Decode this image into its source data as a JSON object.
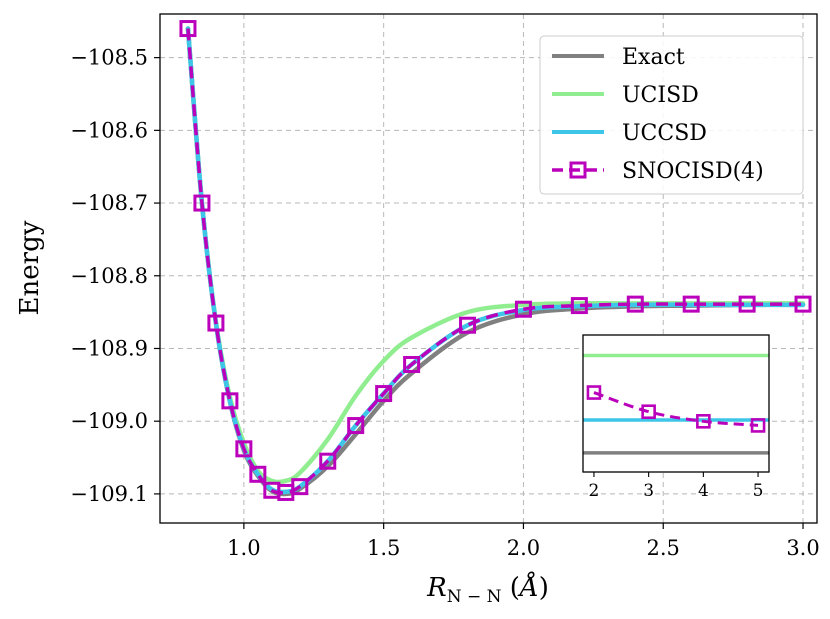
{
  "chart_data": {
    "type": "line",
    "title": "",
    "xlabel": "R_{N-N} (Å)",
    "xlabel_main": "R",
    "xlabel_sub": "N − N",
    "xlabel_unit_open": " (",
    "xlabel_unit": "Å",
    "xlabel_unit_close": ")",
    "ylabel": "Energy",
    "xlim": [
      0.7,
      3.05
    ],
    "ylim": [
      -109.14,
      -108.44
    ],
    "xticks": [
      1.0,
      1.5,
      2.0,
      2.5,
      3.0
    ],
    "xtick_labels": [
      "1.0",
      "1.5",
      "2.0",
      "2.5",
      "3.0"
    ],
    "yticks": [
      -108.5,
      -108.6,
      -108.7,
      -108.8,
      -108.9,
      -109.0,
      -109.1
    ],
    "ytick_labels": [
      "−108.5",
      "−108.6",
      "−108.7",
      "−108.8",
      "−108.9",
      "−109.0",
      "−109.1"
    ],
    "grid": true,
    "legend_position": "top-right",
    "series": [
      {
        "name": "Exact",
        "color": "#808080",
        "style": "solid",
        "x": [
          0.8,
          0.85,
          0.9,
          0.95,
          1.0,
          1.05,
          1.1,
          1.15,
          1.2,
          1.3,
          1.4,
          1.5,
          1.6,
          1.8,
          2.0,
          2.2,
          2.4,
          2.6,
          2.8,
          3.0
        ],
        "y": [
          -108.46,
          -108.7,
          -108.865,
          -108.973,
          -109.04,
          -109.075,
          -109.096,
          -109.1,
          -109.093,
          -109.062,
          -109.018,
          -108.972,
          -108.934,
          -108.878,
          -108.853,
          -108.845,
          -108.842,
          -108.841,
          -108.84,
          -108.84
        ]
      },
      {
        "name": "UCISD",
        "color": "#90ee90",
        "style": "solid",
        "x": [
          0.8,
          0.85,
          0.9,
          0.95,
          1.0,
          1.05,
          1.1,
          1.15,
          1.2,
          1.3,
          1.4,
          1.5,
          1.6,
          1.8,
          2.0,
          2.2,
          2.4,
          2.6,
          2.8,
          3.0
        ],
        "y": [
          -108.46,
          -108.7,
          -108.863,
          -108.967,
          -109.03,
          -109.068,
          -109.082,
          -109.082,
          -109.071,
          -109.025,
          -108.965,
          -108.917,
          -108.885,
          -108.85,
          -108.84,
          -108.838,
          -108.838,
          -108.838,
          -108.838,
          -108.838
        ]
      },
      {
        "name": "UCCSD",
        "color": "#3ec6e8",
        "style": "solid",
        "x": [
          0.8,
          0.85,
          0.9,
          0.95,
          1.0,
          1.05,
          1.1,
          1.15,
          1.2,
          1.3,
          1.4,
          1.5,
          1.6,
          1.8,
          2.0,
          2.2,
          2.4,
          2.6,
          2.8,
          3.0
        ],
        "y": [
          -108.46,
          -108.7,
          -108.865,
          -108.972,
          -109.038,
          -109.073,
          -109.094,
          -109.097,
          -109.09,
          -109.055,
          -109.006,
          -108.962,
          -108.922,
          -108.868,
          -108.847,
          -108.842,
          -108.84,
          -108.84,
          -108.84,
          -108.84
        ]
      },
      {
        "name": "SNOCISD(4)",
        "color": "#bb00bb",
        "style": "dashed",
        "marker": "square",
        "x": [
          0.8,
          0.85,
          0.9,
          0.95,
          1.0,
          1.05,
          1.1,
          1.15,
          1.2,
          1.3,
          1.4,
          1.5,
          1.6,
          1.8,
          2.0,
          2.2,
          2.4,
          2.6,
          2.8,
          3.0
        ],
        "y": [
          -108.46,
          -108.7,
          -108.865,
          -108.972,
          -109.038,
          -109.073,
          -109.095,
          -109.098,
          -109.09,
          -109.055,
          -109.006,
          -108.962,
          -108.922,
          -108.868,
          -108.846,
          -108.841,
          -108.839,
          -108.839,
          -108.839,
          -108.839
        ]
      }
    ],
    "inset": {
      "xlim": [
        1.8,
        5.2
      ],
      "ylim": [
        0,
        1
      ],
      "xticks": [
        2,
        3,
        4,
        5
      ],
      "xtick_labels": [
        "2",
        "3",
        "4",
        "5"
      ],
      "lines": [
        {
          "name": "UCISD",
          "color": "#90ee90",
          "y": 0.85
        },
        {
          "name": "UCCSD",
          "color": "#3ec6e8",
          "y": 0.38
        },
        {
          "name": "Exact",
          "color": "#808080",
          "y": 0.14
        }
      ],
      "snocisd": {
        "color": "#bb00bb",
        "x": [
          2,
          3,
          4,
          5
        ],
        "y": [
          0.58,
          0.44,
          0.37,
          0.34
        ]
      }
    }
  }
}
